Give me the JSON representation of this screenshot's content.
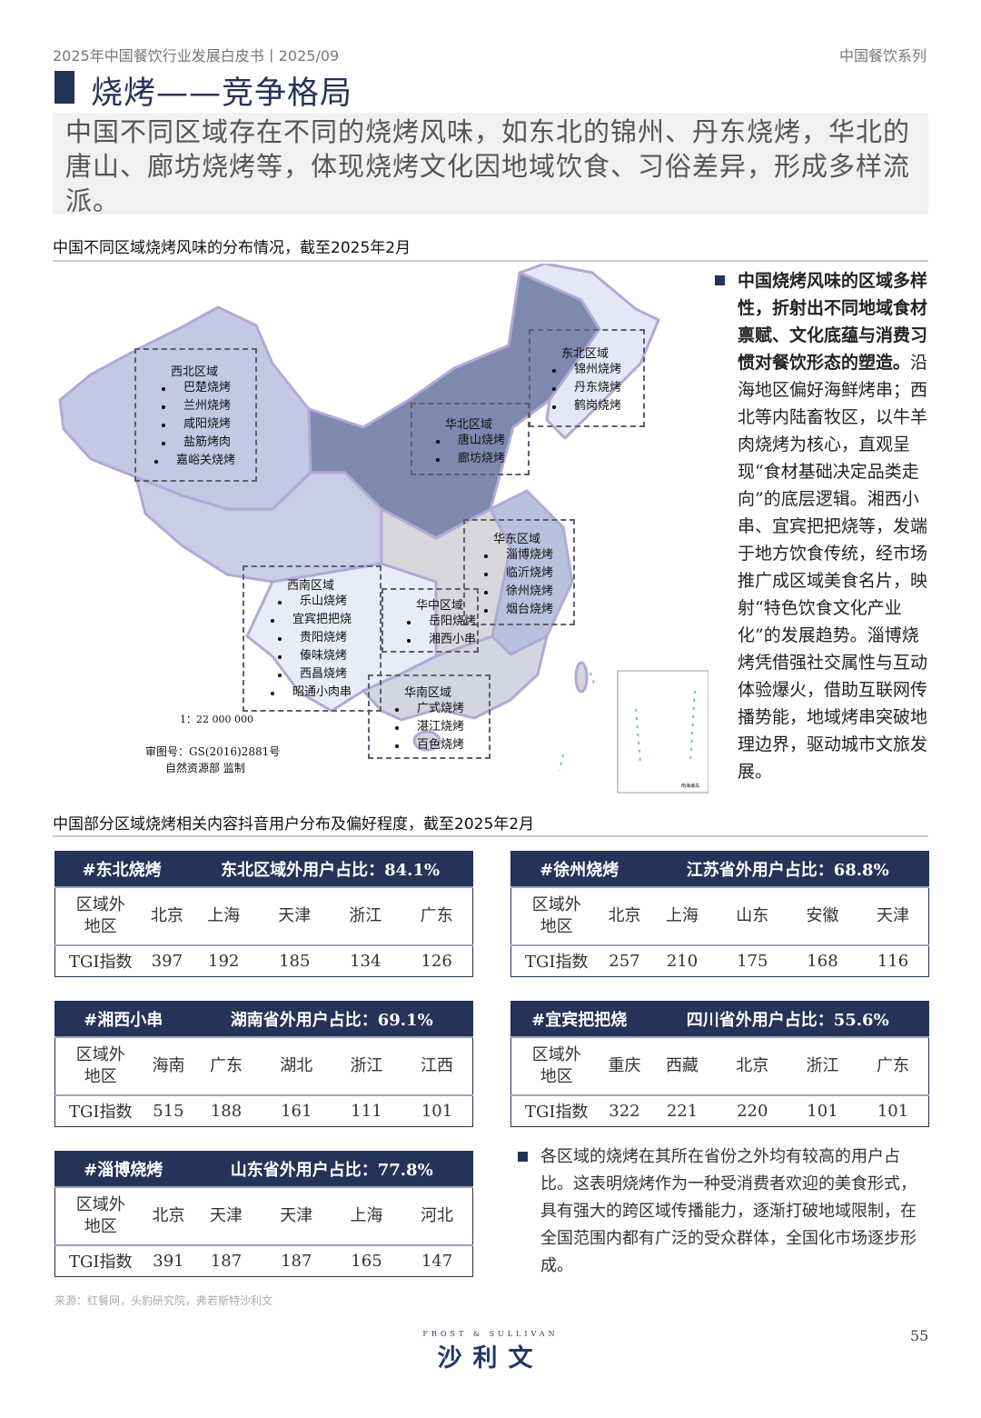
{
  "header": {
    "left": "2025年中国餐饮行业发展白皮书丨2025/09",
    "right": "中国餐饮系列"
  },
  "title": "烧烤——竞争格局",
  "summary": "中国不同区域存在不同的烧烤风味，如东北的锦州、丹东烧烤，华北的唐山、廊坊烧烤等，体现烧烤文化因地域饮食、习俗差异，形成多样流派。",
  "map_section": {
    "heading": "中国不同区域烧烤风味的分布情况，截至2025年2月",
    "scale": "1：22 000 000",
    "approval": "审图号：GS(2016)2881号",
    "authority": "自然资源部 监制",
    "inset_label": "南海诸岛",
    "colors": {
      "northwest": "#c3c8e3",
      "north": "#7d89ad",
      "northeast": "#e4e8f6",
      "tibet": "#c9cde6",
      "southwest": "#e8ecf8",
      "central": "#d7d7dc",
      "east": "#b8c2de",
      "south": "#d3d6e0",
      "border": "#b3a8d6"
    },
    "regions": [
      {
        "name": "西北区域",
        "items": [
          "巴楚烧烤",
          "兰州烧烤",
          "咸阳烧烤",
          "盐筋烤肉",
          "嘉峪关烧烤"
        ]
      },
      {
        "name": "东北区域",
        "items": [
          "锦州烧烤",
          "丹东烧烤",
          "鹤岗烧烤"
        ]
      },
      {
        "name": "华北区域",
        "items": [
          "唐山烧烤",
          "廊坊烧烤"
        ]
      },
      {
        "name": "华东区域",
        "items": [
          "淄博烧烤",
          "临沂烧烤",
          "徐州烧烤",
          "烟台烧烤"
        ]
      },
      {
        "name": "西南区域",
        "items": [
          "乐山烧烤",
          "宜宾把把烧",
          "贵阳烧烤",
          "傣味烧烤",
          "西昌烧烤",
          "昭通小肉串"
        ]
      },
      {
        "name": "华中区域",
        "items": [
          "岳阳烧烤",
          "湘西小串"
        ]
      },
      {
        "name": "华南区域",
        "items": [
          "广式烧烤",
          "湛江烧烤",
          "百色烧烤"
        ]
      }
    ]
  },
  "side_note": {
    "bold": "中国烧烤风味的区域多样性，折射出不同地域食材禀赋、文化底蕴与消费习惯对餐饮形态的塑造。",
    "text": "沿海地区偏好海鲜烤串；西北等内陆畜牧区，以牛羊肉烧烤为核心，直观呈现“食材基础决定品类走向”的底层逻辑。湘西小串、宜宾把把烧等，发端于地方饮食传统，经市场推广成区域美食名片，映射“特色饮食文化产业化”的发展趋势。淄博烧烤凭借强社交属性与互动体验爆火，借助互联网传播势能，地域烤串突破地理边界，驱动城市文旅发展。"
  },
  "tgi_section": {
    "heading": "中国部分区域烧烤相关内容抖音用户分布及偏好程度，截至2025年2月",
    "row1_label": "区域外地区",
    "row2_label": "TGI指数",
    "tables": [
      {
        "tag": "#东北烧烤",
        "share": "东北区域外用户占比：84.1%",
        "regions": [
          "北京",
          "上海",
          "天津",
          "浙江",
          "广东"
        ],
        "tgi": [
          "397",
          "192",
          "185",
          "134",
          "126"
        ]
      },
      {
        "tag": "#徐州烧烤",
        "share": "江苏省外用户占比：68.8%",
        "regions": [
          "北京",
          "上海",
          "山东",
          "安徽",
          "天津"
        ],
        "tgi": [
          "257",
          "210",
          "175",
          "168",
          "116"
        ]
      },
      {
        "tag": "#湘西小串",
        "share": "湖南省外用户占比：69.1%",
        "regions": [
          "海南",
          "广东",
          "湖北",
          "浙江",
          "江西"
        ],
        "tgi": [
          "515",
          "188",
          "161",
          "111",
          "101"
        ]
      },
      {
        "tag": "#宜宾把把烧",
        "share": "四川省外用户占比：55.6%",
        "regions": [
          "重庆",
          "西藏",
          "北京",
          "浙江",
          "广东"
        ],
        "tgi": [
          "322",
          "221",
          "220",
          "101",
          "101"
        ]
      },
      {
        "tag": "#淄博烧烤",
        "share": "山东省外用户占比：77.8%",
        "regions": [
          "北京",
          "天津",
          "天津",
          "上海",
          "河北"
        ],
        "tgi": [
          "391",
          "187",
          "187",
          "165",
          "147"
        ]
      }
    ]
  },
  "bottom_note": "各区域的烧烤在其所在省份之外均有较高的用户占比。这表明烧烤作为一种受消费者欢迎的美食形式，具有强大的跨区域传播能力，逐渐打破地域限制，在全国范围内都有广泛的受众群体，全国化市场逐步形成。",
  "source": "来源：红餐网，头豹研究院，弗若斯特沙利文",
  "logo": {
    "en": "FROST & SULLIVAN",
    "cn": "沙利文"
  },
  "page_number": "55"
}
